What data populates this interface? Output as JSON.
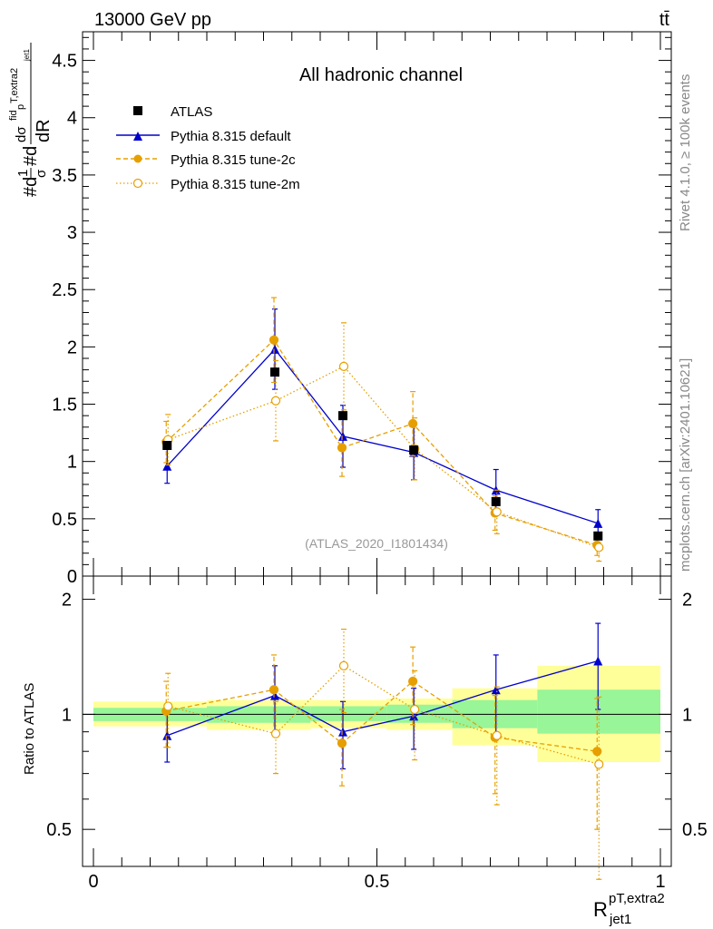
{
  "header": {
    "energy_label": "13000 GeV pp",
    "process_label": "tt̄",
    "channel_title": "All hadronic channel",
    "watermark": "(ATLAS_2020_I1801434)",
    "side_rivet": "Rivet 4.1.0, ≥ 100k events",
    "side_mcplots": "mcplots.cern.ch [arXiv:2401.10621]"
  },
  "axes": {
    "ylabel_main": "#d₁/σ#d dσfid/dR pT,extra2 jet1",
    "ylabel_main_parts": {
      "a": "#d",
      "b": "1",
      "c": "σ",
      "d": "#d",
      "e": "dσ",
      "f": "fid",
      "g": "p",
      "h": "T,extra2",
      "i": "dR",
      "j": "jet1"
    },
    "ylabel_ratio": "Ratio to ATLAS",
    "xlabel_main": "R",
    "xlabel_sup": "pT,extra2",
    "xlabel_sub": "jet1",
    "main_yticks": [
      "0",
      "0.5",
      "1",
      "1.5",
      "2",
      "2.5",
      "3",
      "3.5",
      "4",
      "4.5"
    ],
    "ratio_yticks": [
      "0.5",
      "1",
      "2"
    ],
    "xticks": [
      "0",
      "0.5",
      "1"
    ]
  },
  "legend": [
    {
      "key": "atlas",
      "label": "ATLAS"
    },
    {
      "key": "default",
      "label": "Pythia 8.315 default"
    },
    {
      "key": "tune2c",
      "label": "Pythia 8.315 tune-2c"
    },
    {
      "key": "tune2m",
      "label": "Pythia 8.315 tune-2m"
    }
  ],
  "colors": {
    "atlas": "#000000",
    "default": "#0000cc",
    "tune2c": "#e69f00",
    "tune2m": "#e69f00",
    "band_inner": "#98f598",
    "band_outer": "#ffff9a"
  },
  "chart_data": [
    {
      "type": "scatter",
      "title": "All hadronic channel",
      "xlabel": "R jet1 pT,extra2",
      "ylabel": "1/sigma dsigma/dR",
      "xlim": [
        0,
        1
      ],
      "ylim": [
        0,
        4.75
      ],
      "bin_edges": [
        0.0,
        0.2,
        0.383,
        0.517,
        0.633,
        0.783,
        1.0
      ],
      "x": [
        0.13,
        0.32,
        0.44,
        0.565,
        0.71,
        0.89
      ],
      "series": [
        {
          "name": "ATLAS",
          "values": [
            1.14,
            1.78,
            1.4,
            1.1,
            0.65,
            0.35
          ]
        },
        {
          "name": "Pythia 8.315 default",
          "values": [
            0.96,
            1.98,
            1.22,
            1.08,
            0.75,
            0.46
          ],
          "err": [
            0.15,
            0.35,
            0.27,
            0.24,
            0.18,
            0.12
          ]
        },
        {
          "name": "Pythia 8.315 tune-2c",
          "values": [
            1.17,
            2.06,
            1.12,
            1.33,
            0.55,
            0.27
          ],
          "err": [
            0.18,
            0.37,
            0.25,
            0.28,
            0.15,
            0.09
          ]
        },
        {
          "name": "Pythia 8.315 tune-2m",
          "values": [
            1.19,
            1.53,
            1.83,
            1.11,
            0.56,
            0.25
          ],
          "err": [
            0.22,
            0.35,
            0.38,
            0.27,
            0.19,
            0.12
          ]
        }
      ]
    },
    {
      "type": "scatter",
      "ylabel": "Ratio to ATLAS",
      "xlim": [
        0,
        1
      ],
      "ylim": [
        0.4,
        2.3
      ],
      "yscale": "log",
      "bin_edges": [
        0.0,
        0.2,
        0.383,
        0.517,
        0.633,
        0.783,
        1.0
      ],
      "band_inner": [
        [
          0.96,
          1.04
        ],
        [
          0.95,
          1.05
        ],
        [
          0.96,
          1.05
        ],
        [
          0.95,
          1.06
        ],
        [
          0.92,
          1.09
        ],
        [
          0.89,
          1.16
        ]
      ],
      "band_outer": [
        [
          0.93,
          1.08
        ],
        [
          0.91,
          1.09
        ],
        [
          0.92,
          1.09
        ],
        [
          0.91,
          1.1
        ],
        [
          0.83,
          1.17
        ],
        [
          0.75,
          1.34
        ]
      ],
      "x": [
        0.13,
        0.32,
        0.44,
        0.565,
        0.71,
        0.89
      ],
      "series": [
        {
          "name": "Pythia 8.315 default",
          "values": [
            0.88,
            1.12,
            0.9,
            0.99,
            1.16,
            1.38
          ],
          "err": [
            0.13,
            0.22,
            0.18,
            0.18,
            0.27,
            0.35
          ]
        },
        {
          "name": "Pythia 8.315 tune-2c",
          "values": [
            1.02,
            1.16,
            0.84,
            1.22,
            0.87,
            0.8
          ],
          "err": [
            0.2,
            0.27,
            0.19,
            0.28,
            0.25,
            0.3
          ]
        },
        {
          "name": "Pythia 8.315 tune-2m",
          "values": [
            1.05,
            0.89,
            1.34,
            1.03,
            0.88,
            0.74
          ],
          "err": [
            0.23,
            0.19,
            0.33,
            0.27,
            0.3,
            0.37
          ]
        }
      ]
    }
  ]
}
